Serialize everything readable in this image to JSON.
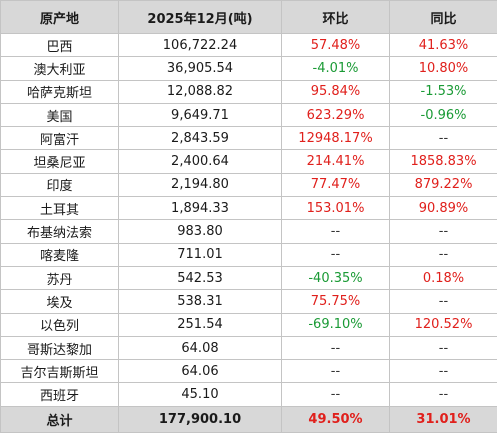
{
  "colors": {
    "header_bg": "#d8d8d8",
    "increase": "#e0201c",
    "decrease": "#1a9a35",
    "grid": "#c4c4c4"
  },
  "table": {
    "headers": [
      "原产地",
      "2025年12月(吨)",
      "环比",
      "同比"
    ],
    "rows": [
      {
        "origin": "巴西",
        "volume": "106,722.24",
        "mom": "57.48%",
        "yoy": "41.63%"
      },
      {
        "origin": "澳大利亚",
        "volume": "36,905.54",
        "mom": "-4.01%",
        "yoy": "10.80%"
      },
      {
        "origin": "哈萨克斯坦",
        "volume": "12,088.82",
        "mom": "95.84%",
        "yoy": "-1.53%"
      },
      {
        "origin": "美国",
        "volume": "9,649.71",
        "mom": "623.29%",
        "yoy": "-0.96%"
      },
      {
        "origin": "阿富汗",
        "volume": "2,843.59",
        "mom": "12948.17%",
        "yoy": "--"
      },
      {
        "origin": "坦桑尼亚",
        "volume": "2,400.64",
        "mom": "214.41%",
        "yoy": "1858.83%"
      },
      {
        "origin": "印度",
        "volume": "2,194.80",
        "mom": "77.47%",
        "yoy": "879.22%"
      },
      {
        "origin": "土耳其",
        "volume": "1,894.33",
        "mom": "153.01%",
        "yoy": "90.89%"
      },
      {
        "origin": "布基纳法索",
        "volume": "983.80",
        "mom": "--",
        "yoy": "--"
      },
      {
        "origin": "喀麦隆",
        "volume": "711.01",
        "mom": "--",
        "yoy": "--"
      },
      {
        "origin": "苏丹",
        "volume": "542.53",
        "mom": "-40.35%",
        "yoy": "0.18%"
      },
      {
        "origin": "埃及",
        "volume": "538.31",
        "mom": "75.75%",
        "yoy": "--"
      },
      {
        "origin": "以色列",
        "volume": "251.54",
        "mom": "-69.10%",
        "yoy": "120.52%"
      },
      {
        "origin": "哥斯达黎加",
        "volume": "64.08",
        "mom": "--",
        "yoy": "--"
      },
      {
        "origin": "吉尔吉斯斯坦",
        "volume": "64.06",
        "mom": "--",
        "yoy": "--"
      },
      {
        "origin": "西班牙",
        "volume": "45.10",
        "mom": "--",
        "yoy": "--"
      }
    ],
    "total": {
      "origin": "总计",
      "volume": "177,900.10",
      "mom": "49.50%",
      "yoy": "31.01%"
    }
  }
}
